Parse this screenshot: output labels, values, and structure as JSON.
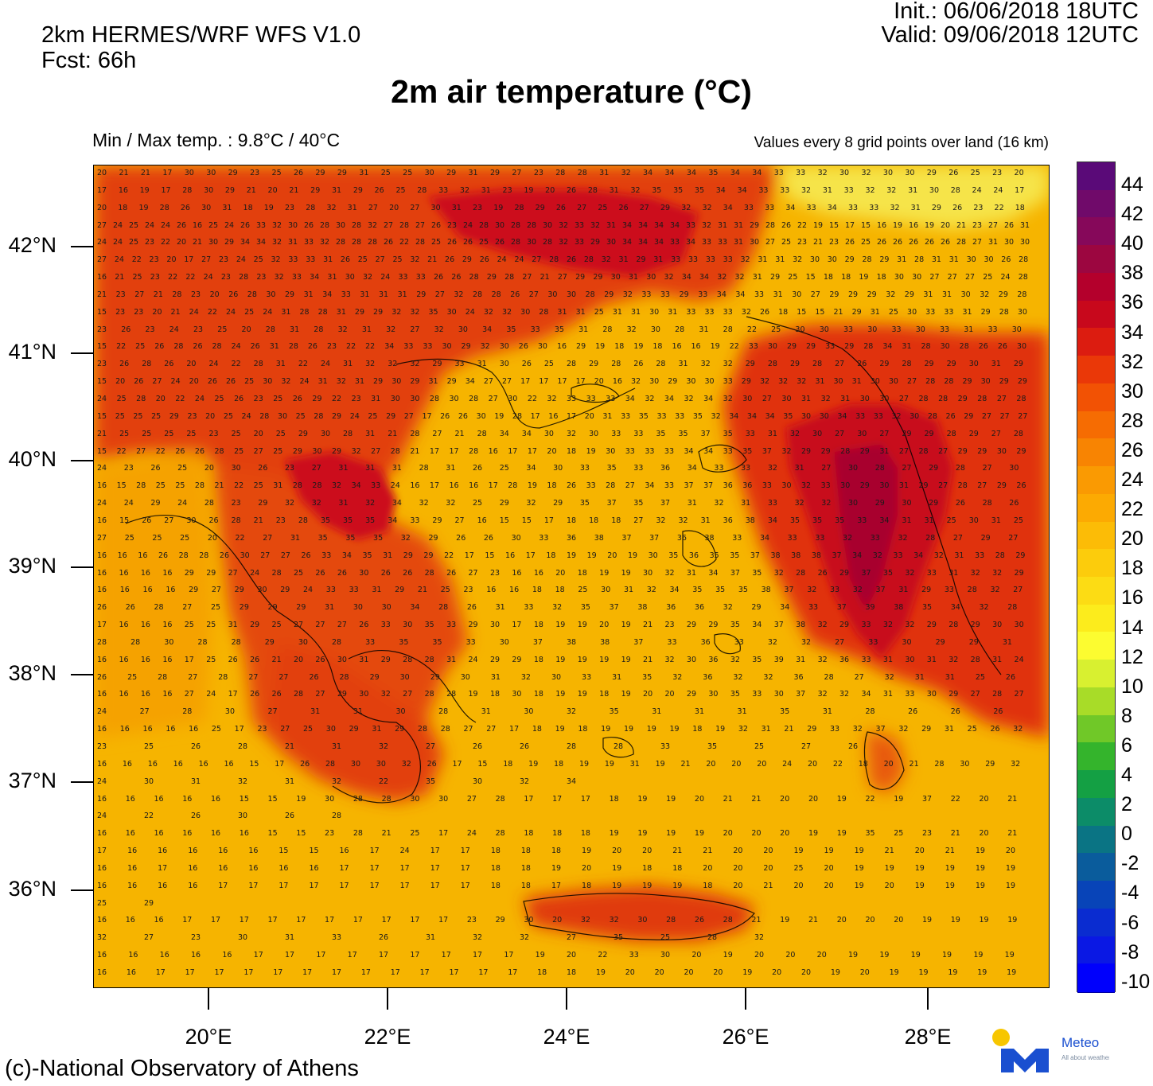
{
  "header": {
    "model": "2km HERMES/WRF WFS V1.0",
    "forecast": "Fcst: 66h",
    "init": "Init.:  06/06/2018 18UTC",
    "valid": "Valid: 09/06/2018 12UTC"
  },
  "title": "2m air temperature (°C)",
  "minmax": "Min / Max temp. : 9.8°C / 40°C",
  "values_note": "Values every 8 grid points over land (16 km)",
  "credit": "(c)-National Observatory of Athens",
  "logo": {
    "name": "Meteo",
    "tagline": "All about weather"
  },
  "map": {
    "lat_labels": [
      "42°N",
      "41°N",
      "40°N",
      "39°N",
      "38°N",
      "37°N",
      "36°N"
    ],
    "lon_labels": [
      "20°E",
      "22°E",
      "24°E",
      "26°E",
      "28°E"
    ],
    "value_rows": [
      "20 21 21 17 30 30 29 23 25 26 29 29 31 25 25 30 29 31 29 27 23 28 28 31 32 34 34 34 35 34 34 33 33 32 30 32 30 30 29 26 25 23 20",
      "17 16 19 17 28 30 29 21 20 21 29 31 29 26 25 28 33 32 31 23 19 20 26 28 31 32 35 35 35 34 34 33 33 32 31 33 32 32 31 30 28 24 24 17",
      "20 18 19 28 26 30 31 18 19 23 28 32 31 27 20 27 30 31 23 19 28 29 26 27 25 26 27 29 32 32 34 33 33 34 33 34 33 33 32 31 29 26 23 22 18",
      "27 24 25 24 24 26 16 25 24 26 33 32 30 26 28 30 28 32 27 28 27 26 23 24 28 30 28 28 30 32 33 32 31 34 34 34 34 33 32 31 31 29 28 26 22 19 15 17 15 16 19 16 19 20 21 23 27 26 31",
      "24 24 25 23 22 20 21 30 29 34 34 32 31 33 32 28 28 28 26 22 28 25 26 26 25 26 28 30 28 32 33 29 30 34 34 34 33 34 33 33 31 30 27 25 23 21 23 26 25 26 26 26 26 26 28 27 31 30 30",
      "27 24 22 23 20 17 27 23 24 25 32 33 33 31 26 25 27 25 32 21 26 29 26 24 24 27 28 26 28 32 31 29 31 33 33 33 33 32 31 31 32 30 30 29 28 29 31 28 31 31 30 30 26 28",
      "16 21 25 23 22 22 24 23 28 23 32 33 34 31 30 32 24 33 33 26 26 28 29 28 27 21 27 29 29 30 31 30 32 34 34 32 32 31 29 25 15 18 18 19 18 30 30 27 27 27 25 24 28",
      "21 23 27 21 28 23 20 26 28 30 29 31 34 33 31 31 31 29 27 32 28 28 26 27 30 30 28 29 32 33 33 29 33 34 34 33 31 30 27 29 29 29 32 29 31 31 30 32 29 28",
      "15 23 23 20 21 24 22 24 25 24 31 28 28 31 29 29 32 32 35 30 24 32 32 30 28 31 31 25 31 31 30 31 33 33 33 32 26 18 15 15 21 29 31 25 30 33 33 31 29 28 30",
      "23 26 23 24 23 25 20 28 31 28 32 31 32 27 32 30 34 35 33 35 31 28 32 30 28 31 28 22 25 30 30 33 30 33 30 33 31 33 30",
      "15 22 25 26 28 26 28 24 26 31 28 26 23 22 22 34 33 33 30 29 32 30 26 30 16 29 19 18 19 18 16 16 19 22 33 30 29 29 33 29 28 34 31 28 30 28 26 26 30",
      "23 26 28 26 20 24 22 28 31 22 24 31 32 32 32 29 33 31 30 26 25 28 29 28 26 28 31 32 32 29 28 29 28 27 26 29 28 29 29 30 31 29",
      "15 20 26 27 24 20 26 26 25 30 32 24 31 32 31 29 30 29 31 29 34 27 27 17 17 17 17 20 16 32 30 29 30 30 33 29 32 32 32 31 30 31 30 30 27 28 28 29 30 29 29",
      "24 25 28 20 22 24 25 26 23 25 26 29 22 23 31 30 30 28 30 28 27 30 22 32 33 33 33 34 32 34 32 34 32 30 27 30 31 32 31 30 30 27 28 28 29 28 27 28",
      "15 25 25 25 29 23 20 25 24 28 30 25 28 29 24 25 29 27 17 26 26 30 19 28 17 16 17 20 31 33 35 33 33 35 32 34 34 34 35 30 30 34 33 33 32 30 28 26 29 27 27 27",
      "21 25 25 25 25 23 25 20 25 29 30 28 31 21 28 27 21 28 34 34 30 32 30 33 33 35 35 37 35 33 31 32 30 27 30 27 29 29 28 29 27 28",
      "15 22 27 22 26 26 28 25 27 25 29 30 29 32 27 28 21 17 17 28 16 17 17 20 18 19 30 33 33 33 34 34 33 35 37 32 29 29 28 29 31 27 28 27 29 29 30 29",
      "24 23 26 25 20 30 26 23 27 31 31 31 28 31 26 25 34 30 33 35 33 36 34 33 33 32 31 27 30 28 27 29 28 27 30",
      "16 15 28 25 25 28 21 22 25 31 28 28 32 34 33 24 16 17 16 16 17 28 19 18 26 33 28 27 34 33 37 37 36 36 33 30 32 33 30 29 30 31 29 27 28 27 29 26",
      "24 24 29 24 28 23 29 32 32 31 32 34 32 32 25 29 32 29 35 37 35 37 31 32 31 33 32 32 30 29 30 29 26 28 26",
      "16 15 26 27 30 26 28 21 23 28 35 35 35 34 33 29 27 16 15 15 17 18 18 18 27 32 32 31 36 38 34 35 35 35 33 34 31 31 25 30 31 25",
      "27 25 25 25 20 22 27 31 35 35 35 32 29 26 26 30 33 36 38 37 37 36 38 33 34 33 33 32 33 32 28 27 29 27",
      "16 16 16 26 28 28 26 30 27 27 26 33 34 35 31 29 29 22 17 15 16 17 18 19 19 20 19 30 35 36 35 35 37 38 38 38 37 34 32 33 34 32 31 33 28 29",
      "16 16 16 16 29 29 27 24 28 25 26 26 30 26 26 28 26 27 23 16 16 20 18 19 19 30 32 31 34 37 35 32 28 26 29 37 35 32 33 31 32 32 29",
      "16 16 16 16 29 27 29 30 29 24 33 33 31 29 21 25 23 16 16 18 18 25 30 31 32 34 35 35 35 38 37 32 33 32 37 31 29 33 28 32 27",
      "26 26 28 27 25 29 29 29 31 30 30 34 28 26 31 33 32 35 37 38 36 36 32 29 34 33 37 39 38 35 34 32 28",
      "17 16 16 16 25 25 31 29 25 27 27 27 26 33 30 35 33 29 30 17 18 19 19 20 19 21 23 29 29 35 34 37 38 32 29 33 32 32 29 28 29 30 30",
      "28 28 30 28 28 29 30 28 33 35 35 33 30 37 38 38 37 33 36 33 32 32 27 33 30 29 29 31",
      "16 16 16 16 17 25 26 26 21 20 26 30 31 29 28 28 31 24 29 29 18 19 19 19 19 21 32 30 36 32 35 39 31 32 36 33 31 30 31 32 28 31 24",
      "26 25 28 27 28 27 27 26 28 29 30 29 30 31 32 30 33 31 35 32 36 32 32 36 28 27 32 31 31 25 26",
      "16 16 16 16 27 24 17 26 26 28 27 29 30 32 27 28 28 19 18 30 18 19 19 18 19 20 20 29 30 35 33 30 37 32 32 34 31 33 30 29 27 28 27",
      "24 27 28 30 27 31 31 30 28 31 30 32 35 31 31 31 35 31 28 26 26 26",
      "16 16 16 16 16 25 17 23 27 25 30 29 31 29 28 28 27 27 17 18 19 18 19 19 19 19 18 19 32 31 21 29 33 32 37 32 29 31 25 26 32",
      "23 25 26 28 21 31 32 27 26 26 28 28 33 35 25 27 26",
      "16 16 16 16 16 16 15 17 26 28 30 30 32 26 17 15 18 19 18 19 19 31 19 21 20 20 20 24 20 22 18 20 21 28 30 29 32",
      "24 30 31 32 31 32 22 35 30 32 34",
      "16 16 16 16 16 15 15 19 30 28 28 30 30 27 28 17 17 17 18 19 19 20 21 21 20 20 19 22 19 37 22 20 21",
      "24 22 26 30 26 28",
      "16 16 16 16 16 16 15 15 23 28 21 25 17 24 28 18 18 18 19 19 19 19 20 20 20 19 19 35 25 23 21 20 21",
      "17 16 16 16 16 16 15 15 16 17 24 17 17 18 18 18 19 20 20 21 21 20 20 19 19 19 21 20 21 19 20",
      "16 16 17 16 16 16 16 16 17 17 17 17 17 18 18 19 20 19 18 18 20 20 20 25 20 19 19 19 19 19 19",
      "16 16 16 16 17 17 17 17 17 17 17 17 17 18 18 17 18 19 19 19 18 20 21 20 20 19 20 19 19 19 19",
      "25 29",
      "16 16 16 17 17 17 17 17 17 17 17 17 17 23 29 30 20 32 32 30 28 26 28 21 19 21 20 20 20 19 19 19 19",
      "32 27 23 30 31 33 26 31 32 32 27 35 25 28 32",
      "16 16 16 16 16 17 17 17 17 17 17 17 17 17 19 20 22 33 30 20 19 20 20 20 19 19 19 19 19 19",
      "16 16 17 17 17 17 17 17 17 17 17 17 17 17 17 18 18 19 20 20 20 20 19 20 20 19 20 19 19 19 19 19"
    ]
  },
  "colorbar": {
    "labels": [
      "44",
      "42",
      "40",
      "38",
      "36",
      "34",
      "32",
      "30",
      "28",
      "26",
      "24",
      "22",
      "20",
      "18",
      "16",
      "14",
      "12",
      "10",
      "8",
      "6",
      "4",
      "2",
      "0",
      "-2",
      "-4",
      "-6",
      "-8",
      "-10"
    ],
    "colors": [
      "#5a0a78",
      "#700a6a",
      "#86085a",
      "#9c0640",
      "#b4002c",
      "#c8081c",
      "#dc1c10",
      "#ea3808",
      "#f25204",
      "#f66c02",
      "#f88402",
      "#fa9a02",
      "#fcaa02",
      "#fcbc06",
      "#fccc0c",
      "#fcdc14",
      "#fcec1c",
      "#fcfc30",
      "#d8f030",
      "#a8dc28",
      "#70c828",
      "#34b42c",
      "#14a044",
      "#0c8c68",
      "#0a7484",
      "#0a5c9c",
      "#0844b8",
      "#0a2cd0",
      "#0a18e4",
      "#0000fc"
    ]
  }
}
